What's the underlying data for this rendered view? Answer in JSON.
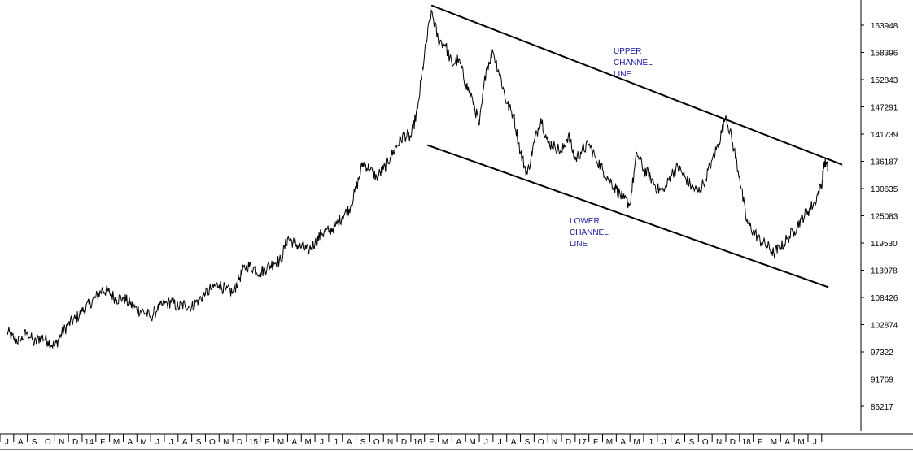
{
  "chart_data": {
    "type": "line",
    "title": "",
    "xlabel": "",
    "ylabel": "",
    "ylim": [
      82000,
      170000
    ],
    "y_axis_position": "right",
    "grid": false,
    "legend": "none",
    "colors": {
      "line": "#000000",
      "channel": "#000000",
      "annotation": "#1a1a9e",
      "background": "#ffffff"
    },
    "y_ticks": [
      "163948",
      "158396",
      "152843",
      "147291",
      "141739",
      "136187",
      "130635",
      "125083",
      "119530",
      "113978",
      "108426",
      "102874",
      "97322",
      "91769",
      "86217"
    ],
    "y_tick_values": [
      163948,
      158396,
      152843,
      147291,
      141739,
      136187,
      130635,
      125083,
      119530,
      113978,
      108426,
      102874,
      97322,
      91769,
      86217
    ],
    "x_ticks": [
      "J",
      "A",
      "S",
      "O",
      "N",
      "D",
      "14",
      "F",
      "M",
      "A",
      "M",
      "J",
      "J",
      "A",
      "S",
      "O",
      "N",
      "D",
      "15",
      "F",
      "M",
      "A",
      "M",
      "J",
      "J",
      "A",
      "S",
      "O",
      "N",
      "D",
      "16",
      "F",
      "M",
      "A",
      "M",
      "J",
      "J",
      "A",
      "S",
      "O",
      "N",
      "D",
      "17",
      "F",
      "M",
      "A",
      "M",
      "J",
      "J",
      "A",
      "S",
      "O",
      "N",
      "D",
      "18",
      "F",
      "M",
      "A",
      "M",
      "J"
    ],
    "x_start_index": 0,
    "x_end_index": 59,
    "series": [
      {
        "points": [
          [
            0,
            101500
          ],
          [
            0.5,
            100000
          ],
          [
            1,
            99500
          ],
          [
            1.5,
            101500
          ],
          [
            2,
            99000
          ],
          [
            2.5,
            100500
          ],
          [
            3,
            99500
          ],
          [
            3.5,
            98500
          ],
          [
            4,
            101000
          ],
          [
            4.5,
            103000
          ],
          [
            5,
            104000
          ],
          [
            5.5,
            105500
          ],
          [
            6,
            107000
          ],
          [
            6.5,
            108500
          ],
          [
            7,
            110000
          ],
          [
            7.5,
            109500
          ],
          [
            8,
            108000
          ],
          [
            8.5,
            108500
          ],
          [
            9,
            107000
          ],
          [
            9.5,
            106000
          ],
          [
            10,
            105500
          ],
          [
            10.5,
            104500
          ],
          [
            11,
            106000
          ],
          [
            11.5,
            107000
          ],
          [
            12,
            107500
          ],
          [
            12.5,
            106500
          ],
          [
            13,
            107000
          ],
          [
            13.5,
            106500
          ],
          [
            14,
            108000
          ],
          [
            14.5,
            109000
          ],
          [
            15,
            110500
          ],
          [
            15.5,
            111000
          ],
          [
            16,
            110000
          ],
          [
            16.5,
            109500
          ],
          [
            17,
            112500
          ],
          [
            17.5,
            115000
          ],
          [
            18,
            114500
          ],
          [
            18.5,
            113500
          ],
          [
            19,
            114500
          ],
          [
            19.5,
            115500
          ],
          [
            20,
            116000
          ],
          [
            20.5,
            120500
          ],
          [
            21,
            119500
          ],
          [
            21.5,
            118500
          ],
          [
            22,
            118000
          ],
          [
            22.5,
            119500
          ],
          [
            23,
            121500
          ],
          [
            23.5,
            122000
          ],
          [
            24,
            123000
          ],
          [
            24.5,
            125000
          ],
          [
            25,
            126500
          ],
          [
            25.5,
            130500
          ],
          [
            26,
            136000
          ],
          [
            26.5,
            134500
          ],
          [
            27,
            133000
          ],
          [
            27.5,
            134500
          ],
          [
            28,
            137000
          ],
          [
            28.5,
            139500
          ],
          [
            29,
            141500
          ],
          [
            29.5,
            141000
          ],
          [
            30,
            147000
          ],
          [
            30.5,
            158000
          ],
          [
            31,
            167000
          ],
          [
            31.5,
            161000
          ],
          [
            32,
            160000
          ],
          [
            32.5,
            156000
          ],
          [
            33,
            157000
          ],
          [
            33.5,
            152000
          ],
          [
            34,
            149000
          ],
          [
            34.5,
            143500
          ],
          [
            35,
            155000
          ],
          [
            35.5,
            158500
          ],
          [
            36,
            154000
          ],
          [
            36.5,
            148000
          ],
          [
            37,
            145500
          ],
          [
            37.5,
            138000
          ],
          [
            38,
            133500
          ],
          [
            38.5,
            140000
          ],
          [
            39,
            145000
          ],
          [
            39.5,
            140000
          ],
          [
            40,
            139500
          ],
          [
            40.5,
            138000
          ],
          [
            41,
            141500
          ],
          [
            41.5,
            136500
          ],
          [
            42,
            138500
          ],
          [
            42.5,
            139500
          ],
          [
            43,
            137000
          ],
          [
            43.5,
            134500
          ],
          [
            44,
            132500
          ],
          [
            44.5,
            130500
          ],
          [
            45,
            128500
          ],
          [
            45.5,
            127500
          ],
          [
            46,
            138000
          ],
          [
            46.5,
            134500
          ],
          [
            47,
            133000
          ],
          [
            47.5,
            130500
          ],
          [
            48,
            130000
          ],
          [
            48.5,
            133500
          ],
          [
            49,
            135000
          ],
          [
            49.5,
            133000
          ],
          [
            50,
            131000
          ],
          [
            50.5,
            130000
          ],
          [
            51,
            132500
          ],
          [
            51.5,
            136500
          ],
          [
            52,
            140000
          ],
          [
            52.5,
            145500
          ],
          [
            53,
            140000
          ],
          [
            53.5,
            133000
          ],
          [
            54,
            124000
          ],
          [
            54.5,
            122000
          ],
          [
            55,
            120000
          ],
          [
            55.5,
            119000
          ],
          [
            56,
            117500
          ],
          [
            56.5,
            118500
          ],
          [
            57,
            120500
          ],
          [
            57.5,
            122000
          ],
          [
            58,
            124500
          ],
          [
            58.5,
            126000
          ],
          [
            59,
            128000
          ],
          [
            59.5,
            131500
          ],
          [
            59.7,
            136200
          ],
          [
            60,
            134500
          ]
        ]
      }
    ],
    "channel_lines": [
      {
        "name": "upper",
        "from": [
          31,
          168000
        ],
        "to": [
          61,
          135500
        ]
      },
      {
        "name": "lower",
        "from": [
          30.7,
          139500
        ],
        "to": [
          60,
          110500
        ]
      }
    ],
    "annotations": [
      {
        "lines": [
          "UPPER",
          "CHANNEL",
          "LINE"
        ]
      },
      {
        "lines": [
          "LOWER",
          "CHANNEL",
          "LINE"
        ]
      }
    ]
  }
}
